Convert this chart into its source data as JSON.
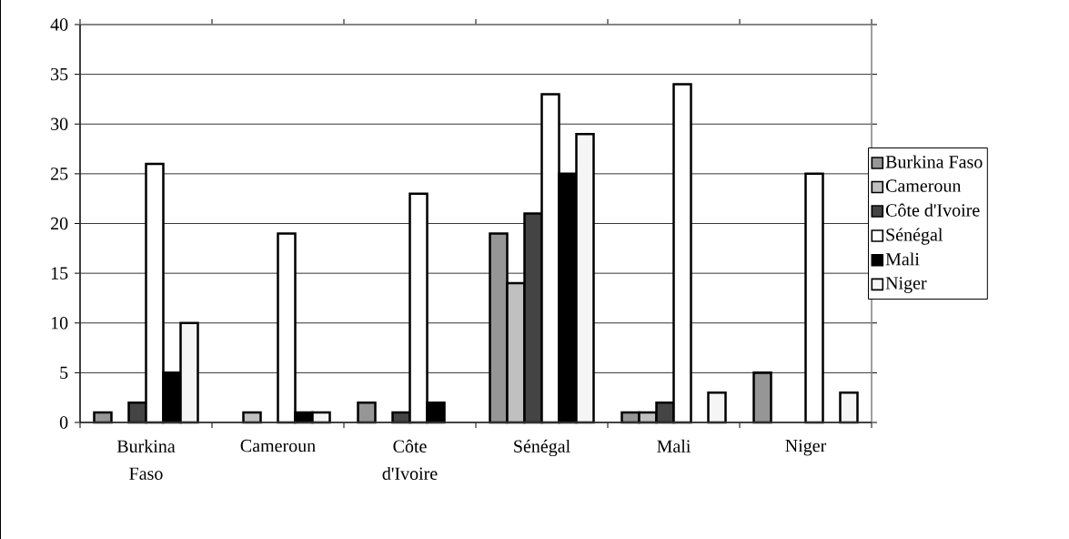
{
  "chart_data": {
    "type": "bar",
    "categories": [
      "Burkina Faso",
      "Cameroun",
      "Côte d'Ivoire",
      "Sénégal",
      "Mali",
      "Niger"
    ],
    "series": [
      {
        "name": "Burkina Faso",
        "color": "#969696",
        "values": [
          1,
          null,
          2,
          19,
          1,
          5
        ]
      },
      {
        "name": "Cameroun",
        "color": "#c0c0c0",
        "values": [
          null,
          1,
          null,
          14,
          1,
          null
        ]
      },
      {
        "name": "Côte d'Ivoire",
        "color": "#444444",
        "values": [
          2,
          null,
          1,
          21,
          2,
          null
        ]
      },
      {
        "name": "Sénégal",
        "color": "#ffffff",
        "values": [
          26,
          19,
          23,
          33,
          34,
          25
        ]
      },
      {
        "name": "Mali",
        "color": "#000000",
        "values": [
          5,
          1,
          2,
          25,
          null,
          null
        ]
      },
      {
        "name": "Niger",
        "color": "#f5f5f5",
        "values": [
          10,
          1,
          null,
          29,
          3,
          3
        ]
      }
    ],
    "ylim": [
      0,
      40
    ],
    "yticks": [
      0,
      5,
      10,
      15,
      20,
      25,
      30,
      35,
      40
    ],
    "grid": "y",
    "legend": "right"
  }
}
